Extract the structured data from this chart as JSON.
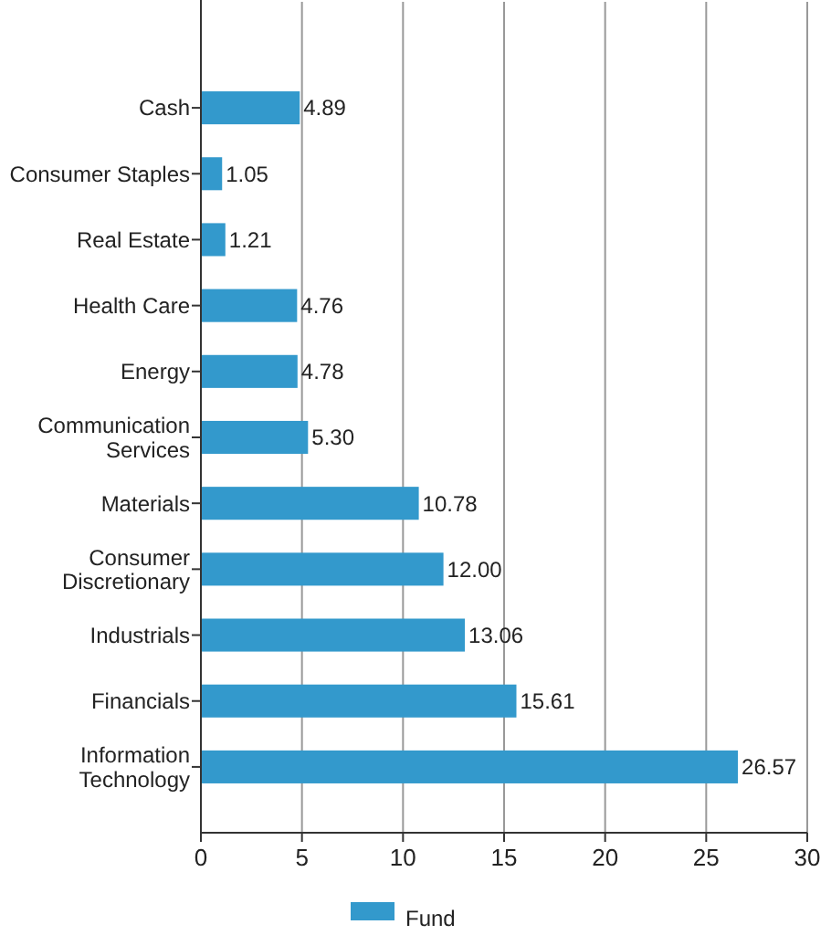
{
  "chart_data": {
    "type": "bar",
    "orientation": "horizontal",
    "categories": [
      "Cash",
      "Consumer Staples",
      "Real Estate",
      "Health Care",
      "Energy",
      "Communication Services",
      "Materials",
      "Consumer Discretionary",
      "Industrials",
      "Financials",
      "Information Technology"
    ],
    "series": [
      {
        "name": "Fund",
        "color": "#3399cc",
        "values": [
          4.89,
          1.05,
          1.21,
          4.76,
          4.78,
          5.3,
          10.78,
          12.0,
          13.06,
          15.61,
          26.57
        ],
        "value_labels": [
          "4.89",
          "1.05",
          "1.21",
          "4.76",
          "4.78",
          "5.30",
          "10.78",
          "12.00",
          "13.06",
          "15.61",
          "26.57"
        ]
      }
    ],
    "xlim": [
      0,
      30
    ],
    "xticks": [
      0,
      5,
      10,
      15,
      20,
      25,
      30
    ],
    "grid": "x",
    "legend": "bottom"
  }
}
